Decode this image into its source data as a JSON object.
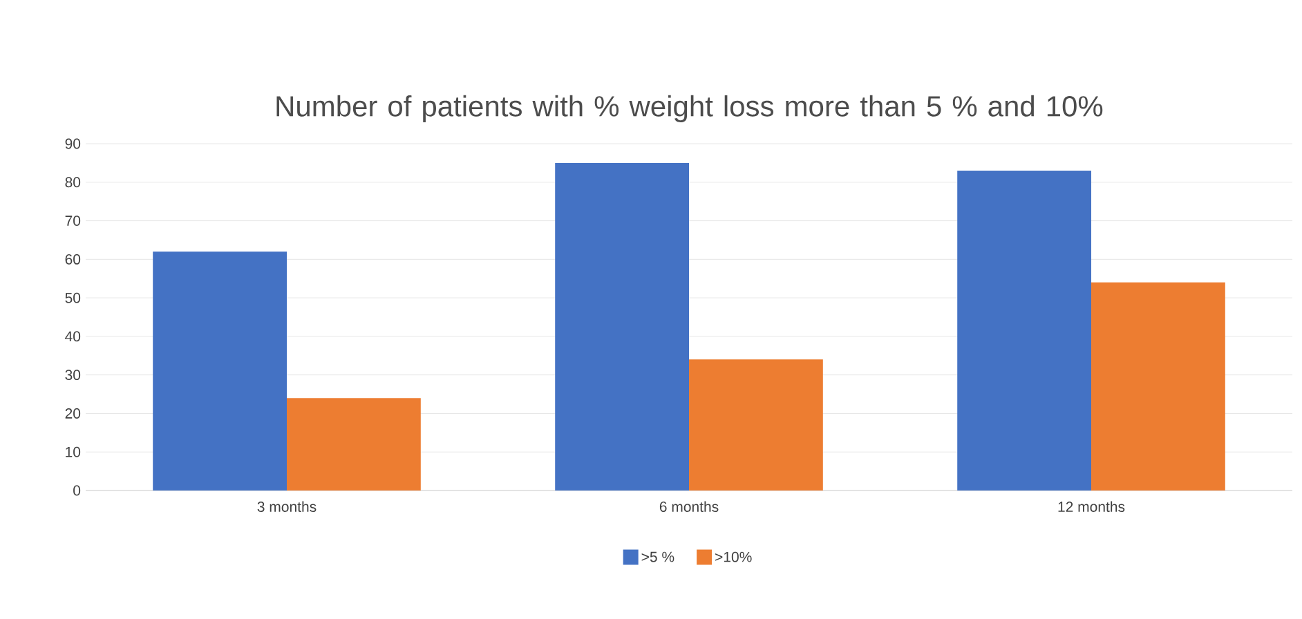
{
  "chart_data": {
    "type": "bar",
    "title": "Number of patients with % weight loss more than 5 % and 10%",
    "categories": [
      "3 months",
      "6 months",
      "12 months"
    ],
    "series": [
      {
        "name": ">5 %",
        "color": "#4472c4",
        "values": [
          62,
          85,
          83
        ]
      },
      {
        "name": ">10%",
        "color": "#ed7d31",
        "values": [
          24,
          34,
          54
        ]
      }
    ],
    "ylim": [
      0,
      90
    ],
    "yticks": [
      0,
      10,
      20,
      30,
      40,
      50,
      60,
      70,
      80,
      90
    ],
    "grid": "y",
    "legend": "bottom"
  }
}
